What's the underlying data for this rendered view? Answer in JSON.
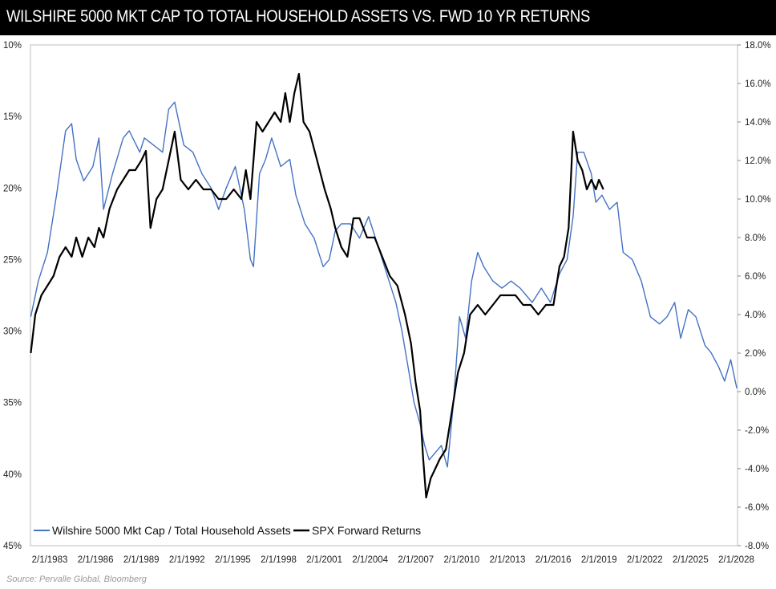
{
  "chart_data": {
    "type": "line",
    "title": "WILSHIRE 5000 MKT CAP TO TOTAL HOUSEHOLD ASSETS VS. FWD 10 YR RETURNS",
    "source": "Source: Pervalle Global, Bloomberg",
    "x_tick_labels": [
      "2/1/1983",
      "2/1/1986",
      "2/1/1989",
      "2/1/1992",
      "2/1/1995",
      "2/1/1998",
      "2/1/2001",
      "2/1/2004",
      "2/1/2007",
      "2/1/2010",
      "2/1/2013",
      "2/1/2016",
      "2/1/2019",
      "2/1/2022",
      "2/1/2025",
      "2/1/2028"
    ],
    "x_range": [
      1983.08,
      2029.75
    ],
    "left_axis": {
      "ticks": [
        "10%",
        "15%",
        "20%",
        "25%",
        "30%",
        "35%",
        "40%",
        "45%"
      ],
      "range": [
        10,
        45
      ],
      "inverted": true
    },
    "right_axis": {
      "ticks": [
        "18.0%",
        "16.0%",
        "14.0%",
        "12.0%",
        "10.0%",
        "8.0%",
        "6.0%",
        "4.0%",
        "2.0%",
        "0.0%",
        "-2.0%",
        "-4.0%",
        "-6.0%",
        "-8.0%"
      ],
      "range": [
        -8,
        18
      ]
    },
    "legend_position": "bottom-left",
    "series": [
      {
        "name": "Wilshire 5000 Mkt Cap / Total Household Assets",
        "color": "#4472c4",
        "axis": "left",
        "x": [
          1983.1,
          1983.6,
          1984.2,
          1984.8,
          1985.4,
          1985.8,
          1986.1,
          1986.6,
          1987.2,
          1987.6,
          1987.9,
          1988.5,
          1989.2,
          1989.6,
          1990.3,
          1990.6,
          1991.2,
          1991.8,
          1992.2,
          1992.6,
          1993.2,
          1993.8,
          1994.4,
          1995.0,
          1995.5,
          1996.0,
          1996.6,
          1997.2,
          1997.6,
          1997.8,
          1998.2,
          1998.6,
          1999.0,
          1999.6,
          2000.2,
          2000.6,
          2001.2,
          2001.8,
          2002.4,
          2002.8,
          2003.2,
          2003.6,
          2004.2,
          2004.8,
          2005.4,
          2006.0,
          2006.6,
          2007.2,
          2007.6,
          2008.0,
          2008.4,
          2008.8,
          2009.1,
          2009.4,
          2009.8,
          2010.2,
          2010.6,
          2011.0,
          2011.4,
          2011.8,
          2012.2,
          2012.6,
          2013.0,
          2013.6,
          2014.2,
          2014.8,
          2015.4,
          2015.8,
          2016.2,
          2016.8,
          2017.4,
          2018.0,
          2018.5,
          2018.9,
          2019.2,
          2019.6,
          2020.1,
          2020.4,
          2020.8,
          2021.3,
          2021.8,
          2022.2,
          2022.8,
          2023.4,
          2024.0,
          2024.6,
          2025.1,
          2025.6,
          2026.0,
          2026.5,
          2027.0,
          2027.6,
          2028.0,
          2028.5,
          2028.9,
          2029.3,
          2029.7
        ],
        "values": [
          29.0,
          26.5,
          24.5,
          20.5,
          16.0,
          15.5,
          18.0,
          19.5,
          18.5,
          16.5,
          21.5,
          19.0,
          16.5,
          16.0,
          17.5,
          16.5,
          17.0,
          17.5,
          14.5,
          14.0,
          17.0,
          17.5,
          19.0,
          20.0,
          21.5,
          20.0,
          18.5,
          21.5,
          25.0,
          25.5,
          19.0,
          18.0,
          16.5,
          18.5,
          18.0,
          20.5,
          22.5,
          23.5,
          25.5,
          25.0,
          23.0,
          22.5,
          22.5,
          23.5,
          22.0,
          24.0,
          26.0,
          28.0,
          30.0,
          32.5,
          35.0,
          36.5,
          38.0,
          39.0,
          38.5,
          38.0,
          39.5,
          35.0,
          29.0,
          30.5,
          26.5,
          24.5,
          25.5,
          26.5,
          27.0,
          26.5,
          27.0,
          27.5,
          28.0,
          27.0,
          28.0,
          26.0,
          25.0,
          22.0,
          17.5,
          17.5,
          19.0,
          21.0,
          20.5,
          21.5,
          21.0,
          24.5,
          25.0,
          26.5,
          29.0,
          29.5,
          29.0,
          28.0,
          30.5,
          28.5,
          29.0,
          31.0,
          31.5,
          32.5,
          33.5,
          32.0,
          34.0
        ]
      },
      {
        "name": "SPX Forward Returns",
        "color": "#000000",
        "axis": "right",
        "x": [
          1983.1,
          1983.4,
          1983.8,
          1984.2,
          1984.6,
          1985.0,
          1985.4,
          1985.8,
          1986.1,
          1986.5,
          1986.9,
          1987.3,
          1987.6,
          1987.9,
          1988.3,
          1988.8,
          1989.2,
          1989.6,
          1990.0,
          1990.4,
          1990.7,
          1991.0,
          1991.4,
          1991.8,
          1992.2,
          1992.6,
          1993.0,
          1993.5,
          1994.0,
          1994.5,
          1995.0,
          1995.5,
          1996.0,
          1996.5,
          1997.0,
          1997.3,
          1997.6,
          1998.0,
          1998.4,
          1998.8,
          1999.2,
          1999.6,
          1999.9,
          2000.2,
          2000.5,
          2000.8,
          2001.1,
          2001.5,
          2002.0,
          2002.5,
          2002.9,
          2003.2,
          2003.6,
          2004.0,
          2004.4,
          2004.8,
          2005.3,
          2005.8,
          2006.3,
          2006.8,
          2007.3,
          2007.8,
          2008.2,
          2008.5,
          2008.8,
          2009.0,
          2009.2,
          2009.5,
          2009.8,
          2010.1,
          2010.5,
          2010.9,
          2011.3,
          2011.7,
          2012.1,
          2012.6,
          2013.1,
          2013.6,
          2014.1,
          2014.6,
          2015.1,
          2015.6,
          2016.1,
          2016.6,
          2017.1,
          2017.6,
          2018.0,
          2018.3,
          2018.6,
          2018.9,
          2019.2,
          2019.5,
          2019.8,
          2020.1,
          2020.4,
          2020.6,
          2020.9
        ],
        "values": [
          2.0,
          4.0,
          5.0,
          5.5,
          6.0,
          7.0,
          7.5,
          7.0,
          8.0,
          7.0,
          8.0,
          7.5,
          8.5,
          8.0,
          9.5,
          10.5,
          11.0,
          11.5,
          11.5,
          12.0,
          12.5,
          8.5,
          10.0,
          10.5,
          12.0,
          13.5,
          11.0,
          10.5,
          11.0,
          10.5,
          10.5,
          10.0,
          10.0,
          10.5,
          10.0,
          11.5,
          10.0,
          14.0,
          13.5,
          14.0,
          14.5,
          14.0,
          15.5,
          14.0,
          15.5,
          16.5,
          14.0,
          13.5,
          12.0,
          10.5,
          9.5,
          8.5,
          7.5,
          7.0,
          9.0,
          9.0,
          8.0,
          8.0,
          7.0,
          6.0,
          5.5,
          4.0,
          2.5,
          0.5,
          -1.0,
          -3.5,
          -5.5,
          -4.5,
          -4.0,
          -3.5,
          -3.0,
          -1.0,
          1.0,
          2.0,
          4.0,
          4.5,
          4.0,
          4.5,
          5.0,
          5.0,
          5.0,
          4.5,
          4.5,
          4.0,
          4.5,
          4.5,
          6.5,
          7.0,
          8.5,
          13.5,
          12.0,
          11.5,
          10.5,
          11.0,
          10.5,
          11.0,
          10.5
        ]
      }
    ]
  }
}
